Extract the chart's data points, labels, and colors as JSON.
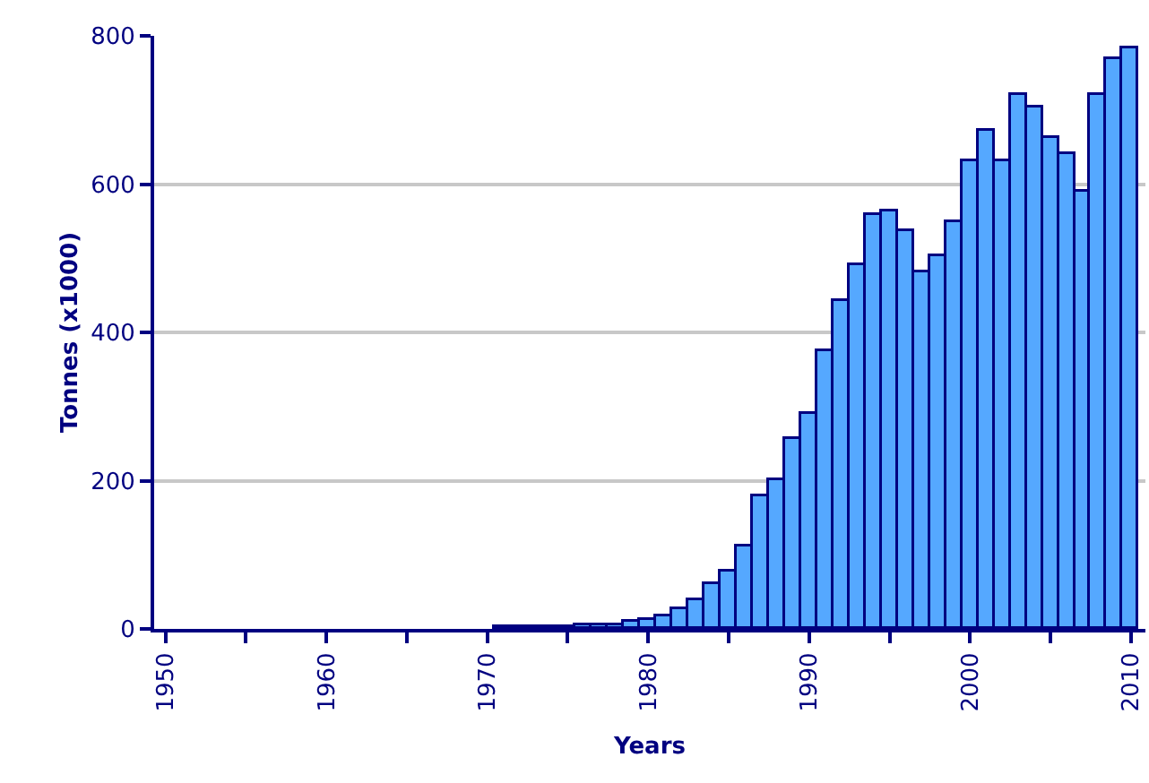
{
  "chart_data": {
    "type": "bar",
    "xlabel": "Years",
    "ylabel": "Tonnes (x1000)",
    "color": "#55a8ff",
    "x": [
      1971,
      1972,
      1973,
      1974,
      1975,
      1976,
      1977,
      1978,
      1979,
      1980,
      1981,
      1982,
      1983,
      1984,
      1985,
      1986,
      1987,
      1988,
      1989,
      1990,
      1991,
      1992,
      1993,
      1994,
      1995,
      1996,
      1997,
      1998,
      1999,
      2000,
      2001,
      2002,
      2003,
      2004,
      2005,
      2006,
      2007,
      2008,
      2009,
      2010
    ],
    "values": [
      2,
      2,
      2,
      2,
      3,
      5,
      5,
      5,
      10,
      12,
      18,
      27,
      39,
      60,
      77,
      111,
      179,
      200,
      256,
      290,
      374,
      442,
      490,
      558,
      563,
      536,
      481,
      502,
      548,
      630,
      671,
      630,
      720,
      703,
      662,
      640,
      589,
      720,
      768,
      783
    ],
    "xlim": [
      1949.3,
      2010.9
    ],
    "ylim": [
      0,
      800
    ],
    "xticks": [
      1950,
      {
        "value": 1955,
        "label": null
      },
      1960,
      {
        "value": 1965,
        "label": null
      },
      1970,
      {
        "value": 1975,
        "label": null
      },
      1980,
      {
        "value": 1985,
        "label": null
      },
      1990,
      {
        "value": 1995,
        "label": null
      },
      2000,
      {
        "value": 2005,
        "label": null
      },
      2010
    ],
    "yticks": [
      0,
      200,
      400,
      600,
      800
    ],
    "grid": "y"
  }
}
